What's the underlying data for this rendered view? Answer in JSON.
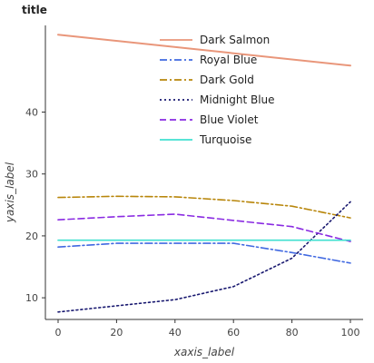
{
  "chart_data": {
    "type": "line",
    "title": "title",
    "xlabel": "xaxis_label",
    "ylabel": "yaxis_label",
    "xlim": [
      0,
      100
    ],
    "ylim": [
      6.5,
      54
    ],
    "xticks": [
      0,
      20,
      40,
      60,
      80,
      100
    ],
    "yticks": [
      10,
      20,
      30,
      40
    ],
    "grid": false,
    "legend_position": "top-right",
    "series": [
      {
        "name": "Dark Salmon",
        "color": "#e9967a",
        "dash": "solid",
        "x": [
          0,
          100
        ],
        "y": [
          52.5,
          47.5
        ]
      },
      {
        "name": "Royal Blue",
        "color": "#4169e1",
        "dash": "dashdot",
        "x": [
          0,
          20,
          40,
          60,
          80,
          100
        ],
        "y": [
          18.2,
          18.8,
          18.8,
          18.8,
          17.3,
          15.6
        ]
      },
      {
        "name": "Dark Gold",
        "color": "#b8860b",
        "dash": "dashdot",
        "x": [
          0,
          20,
          40,
          60,
          80,
          100
        ],
        "y": [
          26.2,
          26.4,
          26.3,
          25.7,
          24.8,
          22.9
        ]
      },
      {
        "name": "Midnight Blue",
        "color": "#191970",
        "dash": "dotted",
        "x": [
          0,
          20,
          40,
          60,
          80,
          100
        ],
        "y": [
          7.7,
          8.7,
          9.7,
          11.8,
          16.4,
          25.5
        ]
      },
      {
        "name": "Blue Violet",
        "color": "#8a2be2",
        "dash": "dashed",
        "x": [
          0,
          20,
          40,
          60,
          80,
          100
        ],
        "y": [
          22.6,
          23.1,
          23.5,
          22.5,
          21.5,
          19.1
        ]
      },
      {
        "name": "Turquoise",
        "color": "#40e0d0",
        "dash": "solid",
        "x": [
          0,
          100
        ],
        "y": [
          19.3,
          19.3
        ]
      }
    ]
  }
}
